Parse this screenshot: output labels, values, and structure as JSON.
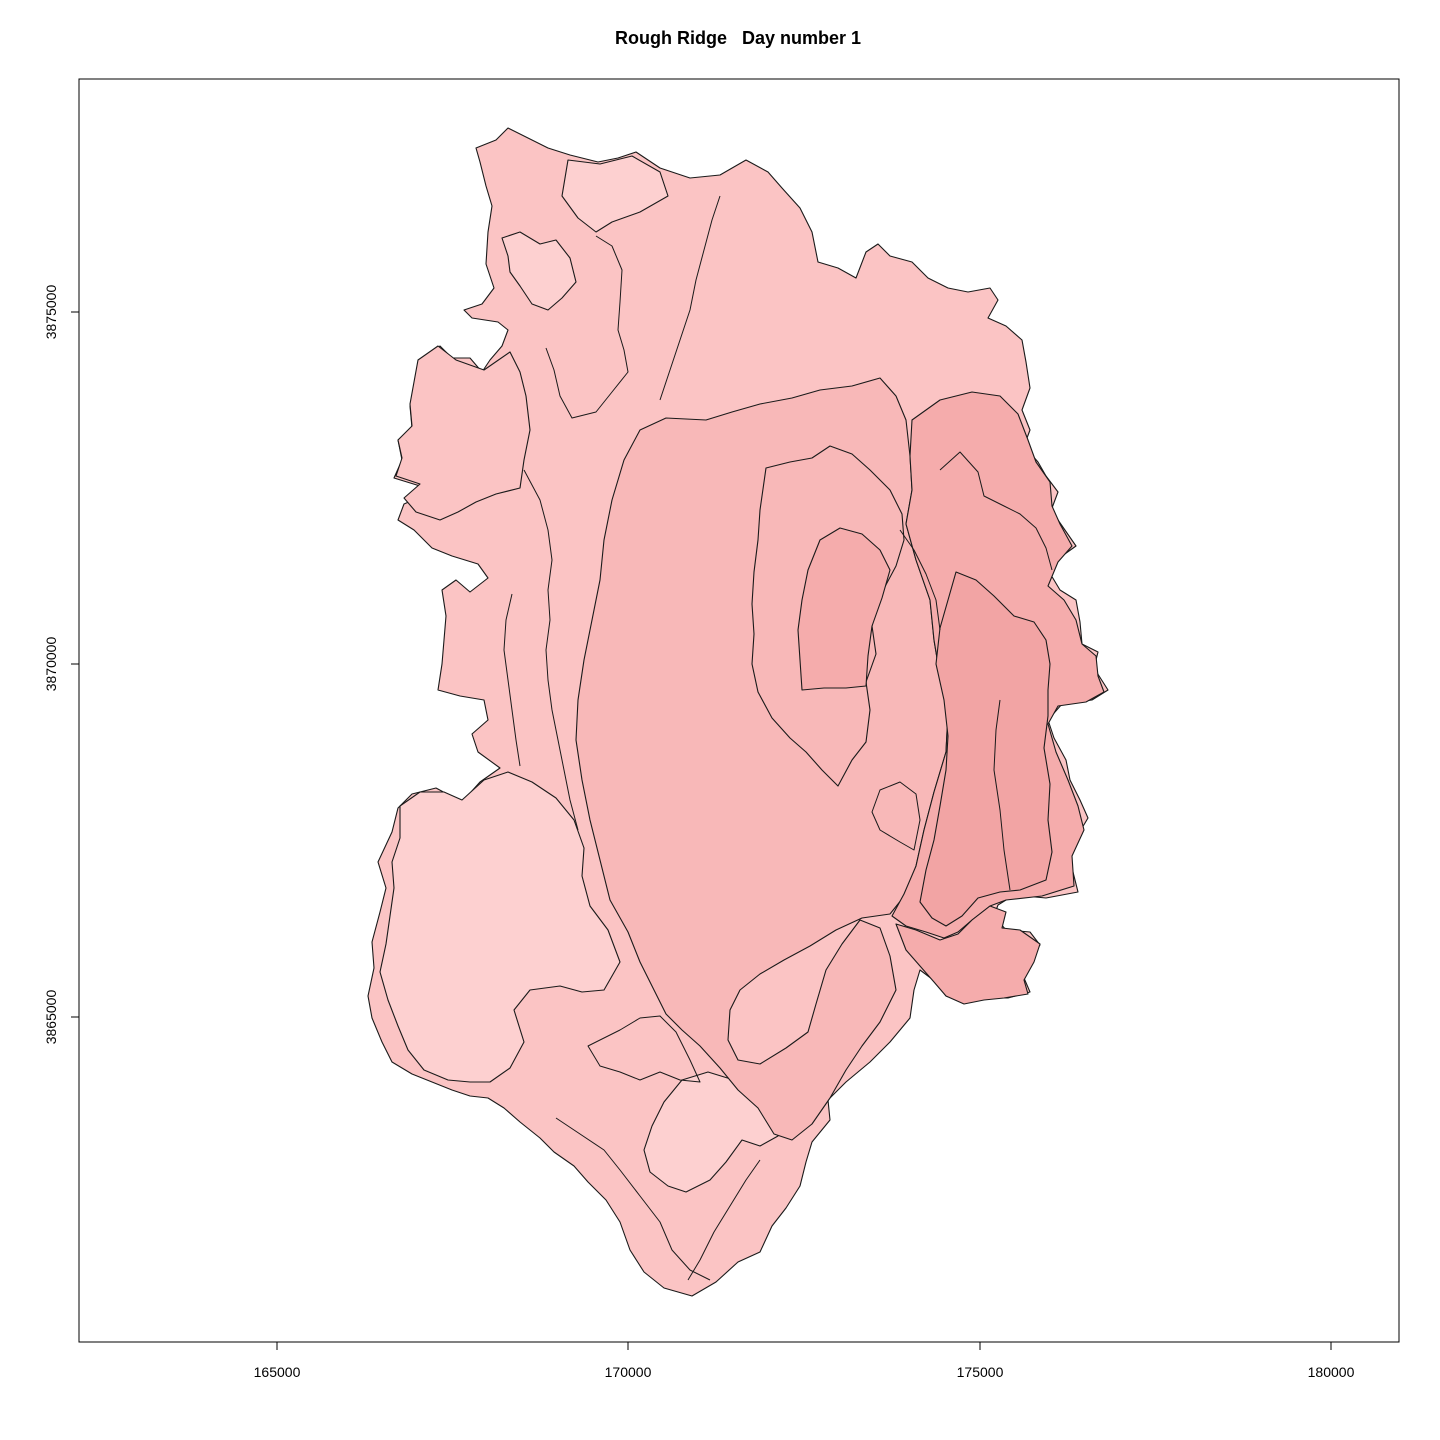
{
  "title": "Rough Ridge   Day number 1",
  "map": {
    "x_ticks": [
      "165000",
      "170000",
      "175000",
      "180000"
    ],
    "y_ticks": [
      "3865000",
      "3870000",
      "3875000"
    ],
    "fill_colors": {
      "lightest": "#fdd0d0",
      "base": "#fbc4c4",
      "mid": "#f8b8b8",
      "dark": "#f5acac",
      "darkest": "#f2a4a4"
    },
    "stroke_color": "#1a1a1a"
  }
}
